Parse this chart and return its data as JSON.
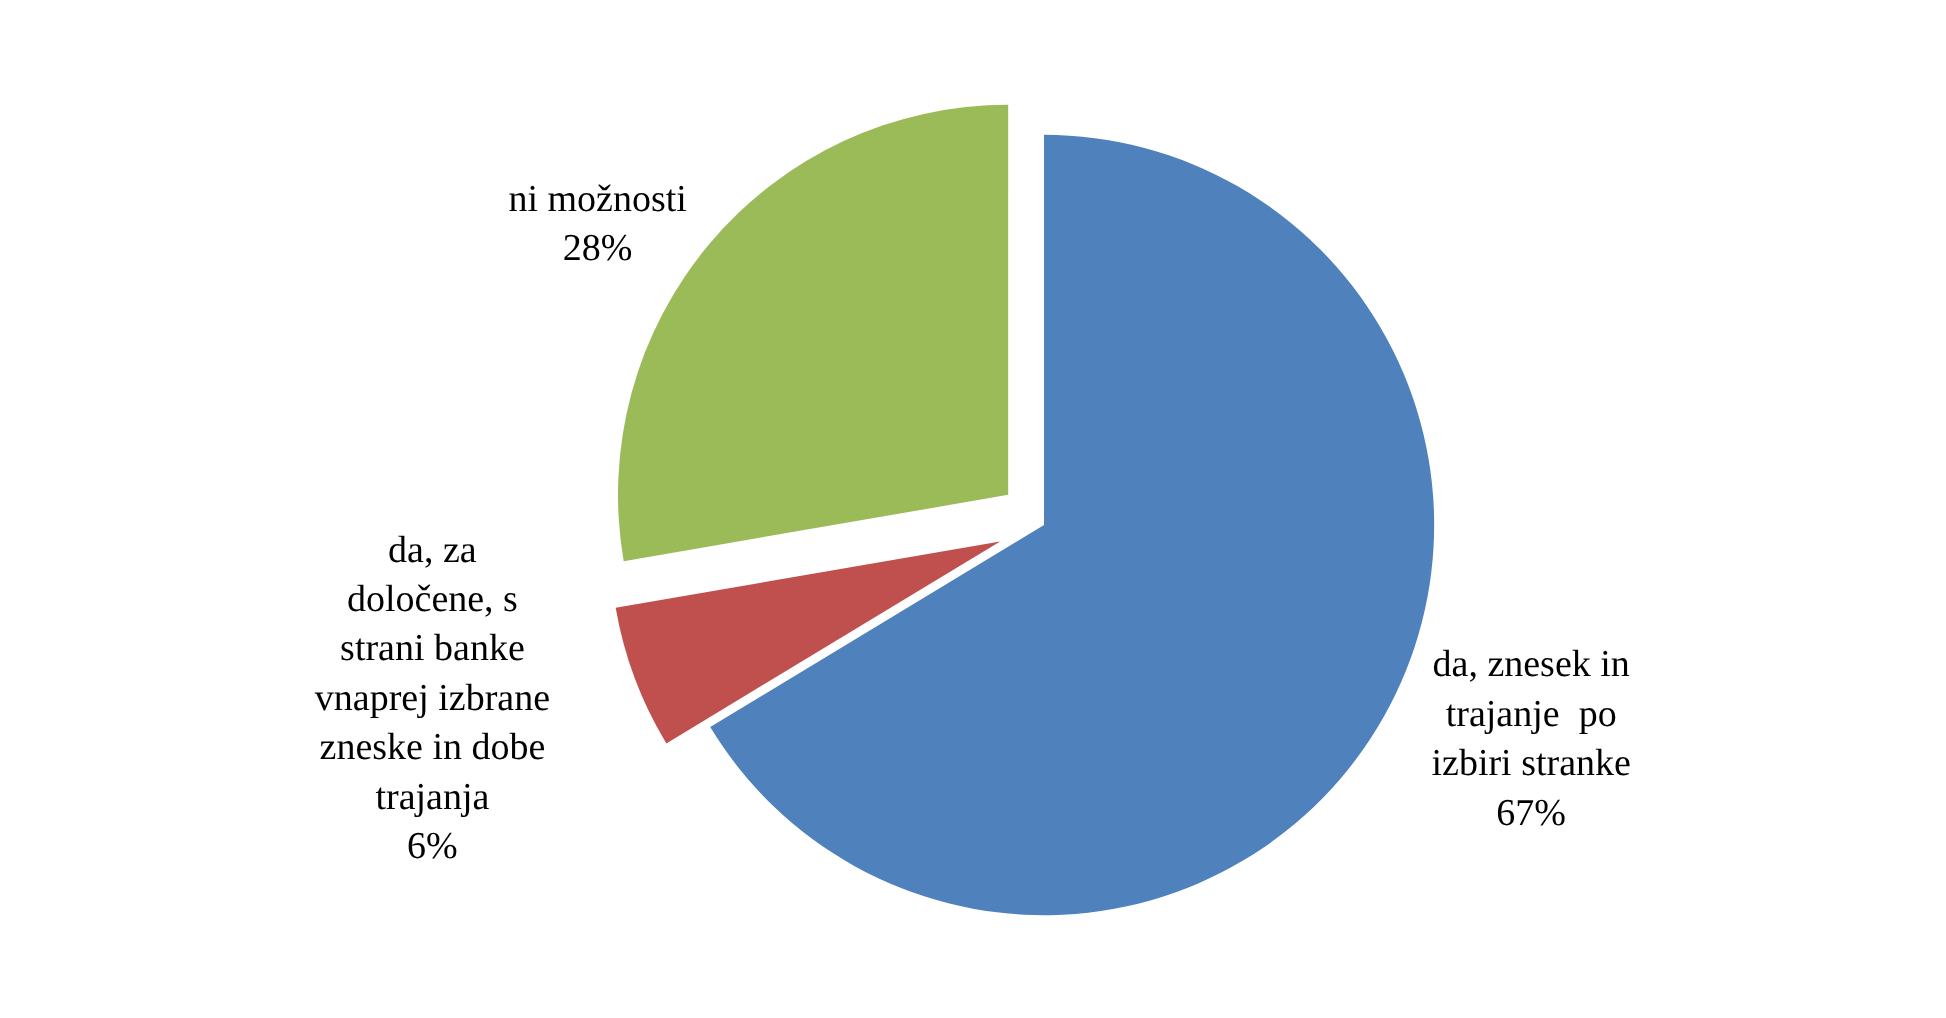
{
  "chart_data": {
    "type": "pie",
    "categories": [
      "da, znesek in\ntrajanje  po\nizbiri stranke",
      "da, za\ndoločene, s\nstrani banke\nvnaprej izbrane\nzneske in dobe\ntrajanja",
      "ni možnosti"
    ],
    "values": [
      67,
      6,
      28
    ],
    "value_labels": [
      "67%",
      "6%",
      "28%"
    ],
    "colors": [
      "#4f81bd",
      "#c0504d",
      "#9bbb59"
    ],
    "legend": false
  }
}
